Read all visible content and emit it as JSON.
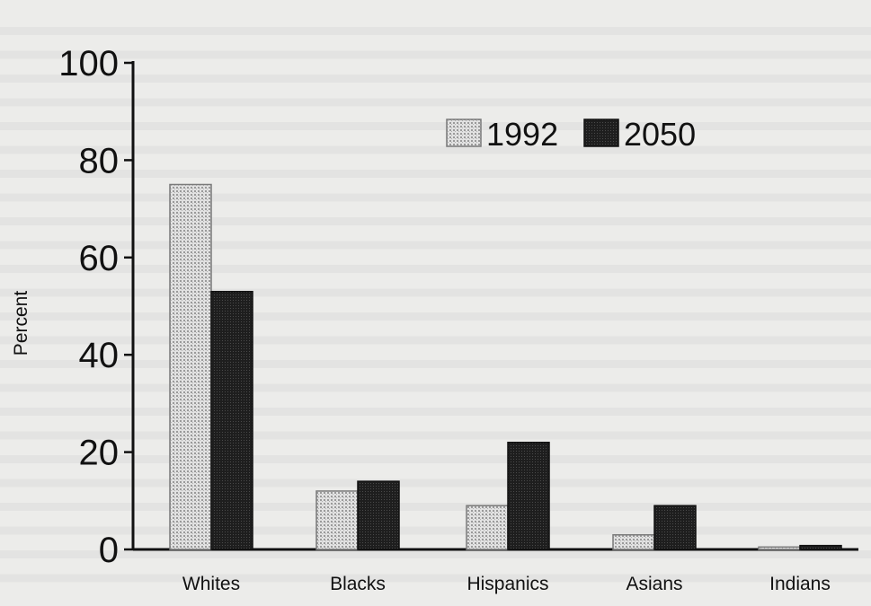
{
  "chart_data": {
    "type": "bar",
    "categories": [
      "Whites",
      "Blacks",
      "Hispanics",
      "Asians",
      "Indians"
    ],
    "series": [
      {
        "name": "1992",
        "values": [
          75,
          12,
          9,
          3,
          0.5
        ],
        "color": "#bdbdbd",
        "pattern": "light-dotted"
      },
      {
        "name": "2050",
        "values": [
          53,
          14,
          22,
          9,
          0.8
        ],
        "color": "#2a2a2a",
        "pattern": "dark-solid"
      }
    ],
    "ylabel": "Percent",
    "xlabel": "",
    "ylim": [
      0,
      100
    ],
    "yticks": [
      0,
      20,
      40,
      60,
      80,
      100
    ],
    "legend_position": "top-center",
    "grid": false
  }
}
